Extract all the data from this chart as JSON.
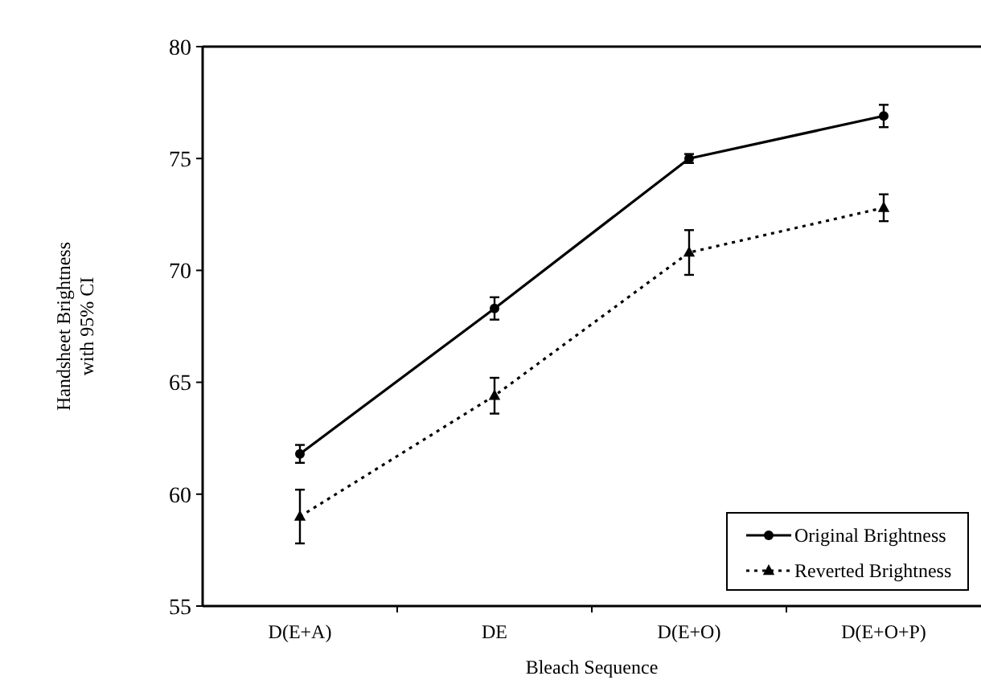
{
  "chart_data": {
    "type": "line",
    "xlabel": "Bleach Sequence",
    "ylabel": "Handsheet Brightness with 95% CI",
    "categories": [
      "D(E+A)",
      "DE",
      "D(E+O)",
      "D(E+O+P)"
    ],
    "ylim": [
      55,
      80
    ],
    "yticks": [
      55,
      60,
      65,
      70,
      75,
      80
    ],
    "grid": false,
    "legend": "bottom right",
    "series": [
      {
        "name": "Original Brightness",
        "color": "#000000",
        "values": [
          61.8,
          68.3,
          75.0,
          76.9
        ],
        "errors": [
          0.4,
          0.5,
          0.2,
          0.5
        ],
        "marker": "circle",
        "line_style": "solid"
      },
      {
        "name": "Reverted Brightness",
        "color": "#000000",
        "values": [
          59.0,
          64.4,
          70.8,
          72.8
        ],
        "errors": [
          1.2,
          0.8,
          1.0,
          0.6
        ],
        "marker": "triangle",
        "line_style": "dotted"
      }
    ]
  }
}
